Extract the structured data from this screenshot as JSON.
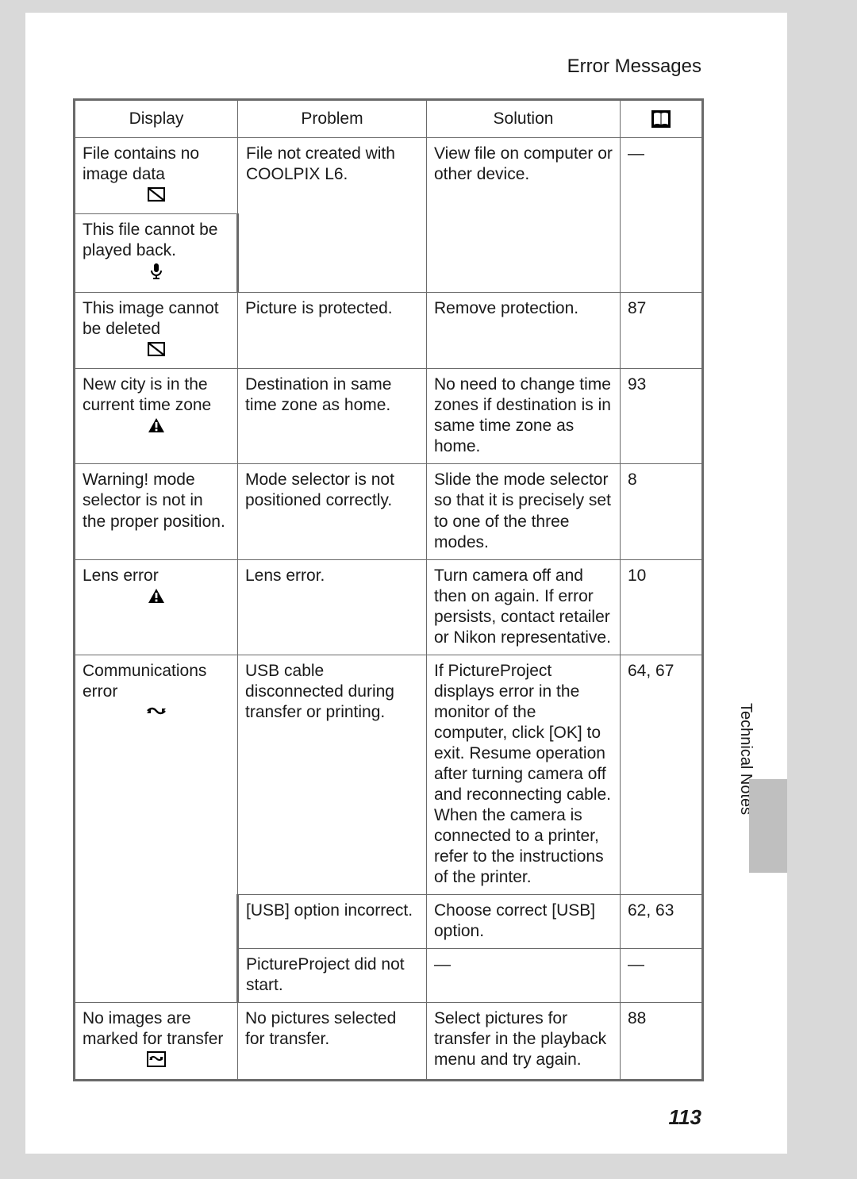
{
  "header": {
    "title": "Error Messages"
  },
  "side_label": "Technical Notes",
  "page_number": "113",
  "table": {
    "columns": {
      "display": "Display",
      "problem": "Problem",
      "solution": "Solution",
      "ref_icon": "book-icon"
    },
    "rows": [
      {
        "display": {
          "text": "File contains no image data",
          "icon": "no-image-icon"
        },
        "problem": "File not created with COOLPIX L6.",
        "solution": "View file on computer or other device.",
        "ref": "—",
        "problem_rowspan": 2,
        "solution_rowspan": 2,
        "ref_rowspan": 2
      },
      {
        "display": {
          "text": "This file cannot be played back.",
          "icon": "microphone-icon"
        }
      },
      {
        "display": {
          "text": "This image cannot be deleted",
          "icon": "no-image-icon"
        },
        "problem": "Picture is protected.",
        "solution": "Remove protection.",
        "ref": "87"
      },
      {
        "display": {
          "text": "New city is in the current time zone",
          "icon": "warning-icon"
        },
        "problem": "Destination in same time zone as home.",
        "solution": "No need to change time zones if destination is in same time zone as home.",
        "ref": "93"
      },
      {
        "display": {
          "text": "Warning! mode selector is not in the proper position.",
          "icon": ""
        },
        "problem": "Mode selector is not positioned correctly.",
        "solution": "Slide the mode selector so that it is precisely set to one of the three modes.",
        "ref": "8"
      },
      {
        "display": {
          "text": "Lens error",
          "icon": "warning-icon"
        },
        "problem": "Lens error.",
        "solution": "Turn camera off and then on again. If error persists, contact retailer or Nikon representative.",
        "ref": "10"
      },
      {
        "display": {
          "text": "Communications error",
          "icon": "transfer-icon"
        },
        "problem": "USB cable disconnected during transfer or printing.",
        "solution": "If PictureProject displays error in the monitor of the computer, click [OK] to exit. Resume operation after turning camera off and reconnecting cable. When the camera is connected to a printer, refer to the instructions of the printer.",
        "ref": "64, 67",
        "display_rowspan": 3
      },
      {
        "problem": "[USB] option incorrect.",
        "solution": "Choose correct [USB] option.",
        "ref": "62, 63"
      },
      {
        "problem": "PictureProject did not start.",
        "solution": "—",
        "ref": "—"
      },
      {
        "display": {
          "text": "No images are marked for transfer",
          "icon": "picture-transfer-icon"
        },
        "problem": "No pictures selected for transfer.",
        "solution": "Select pictures for transfer in the playback menu and try again.",
        "ref": "88"
      }
    ]
  },
  "icons": {
    "no-image-icon": "<svg width='22' height='18' viewBox='0 0 22 18'><rect x='1' y='1' width='20' height='16' fill='none' stroke='#000' stroke-width='2.2'/><line x1='2' y1='2' x2='20' y2='16' stroke='#000' stroke-width='2.2'/></svg>",
    "microphone-icon": "<svg width='16' height='22' viewBox='0 0 16 22'><rect x='5' y='1' width='6' height='11' rx='3' fill='#000'/><path d='M2 10 a6 6 0 0 0 12 0' fill='none' stroke='#000' stroke-width='2'/><line x1='8' y1='16' x2='8' y2='20' stroke='#000' stroke-width='2'/><line x1='4' y1='20' x2='12' y2='20' stroke='#000' stroke-width='2'/></svg>",
    "warning-icon": "<svg width='22' height='20' viewBox='0 0 22 20'><path d='M11 1 L21 19 L1 19 Z' fill='#000'/><rect x='9.6' y='6' width='2.8' height='7' fill='#fff'/><rect x='9.6' y='14.5' width='2.8' height='2.8' fill='#fff'/></svg>",
    "transfer-icon": "<svg width='26' height='16' viewBox='0 0 26 16'><path d='M2 6 Q8 0 13 6 Q18 12 24 6' fill='none' stroke='#000' stroke-width='2.5'/><path d='M1 9 L6 4 L6 9 Z' fill='#000'/><path d='M25 3 L20 8 L20 3 Z' fill='#000'/></svg>",
    "picture-transfer-icon": "<svg width='24' height='20' viewBox='0 0 24 20'><rect x='1' y='1' width='22' height='18' fill='none' stroke='#000' stroke-width='2'/><path d='M4 9 Q8 5 12 9 Q16 13 20 9' fill='none' stroke='#000' stroke-width='2'/><path d='M3 11 L7 7 L7 11 Z' fill='#000'/><path d='M21 7 L17 11 L17 7 Z' fill='#000'/></svg>",
    "book-icon": "<svg width='24' height='22' viewBox='0 0 24 22'><rect x='0' y='0' width='24' height='22' fill='#000'/><path d='M3 4 Q7 2 12 4 Q17 2 21 4 L21 18 Q17 16 12 18 Q7 16 3 18 Z' fill='#fff'/><line x1='12' y1='4' x2='12' y2='18' stroke='#000' stroke-width='1'/></svg>"
  }
}
